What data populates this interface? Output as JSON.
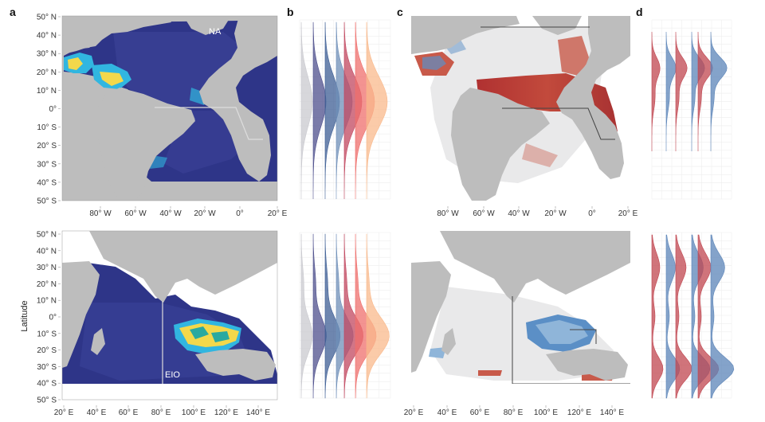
{
  "figure": {
    "panel_labels": [
      "a",
      "b",
      "c",
      "d"
    ],
    "y_axis_title": "Latitude",
    "colors": {
      "land": "#bdbdbd",
      "ocean_dark": "#2e3588",
      "hotspot_cyan": "#31b6e0",
      "hotspot_yellow": "#f3d84b",
      "risk_red": "#b53a3a",
      "risk_blue": "#5b8fc6",
      "mask_light": "#e9e9ea",
      "box_line": "#444444",
      "region_line": "#dddddd"
    }
  },
  "atlantic": {
    "region_label": "NA",
    "lat_ticks": [
      "50° N",
      "40° N",
      "30° N",
      "20° N",
      "10° N",
      "0°",
      "10° S",
      "20° S",
      "30° S",
      "40° S",
      "50° S"
    ],
    "lon_ticks": [
      "80° W",
      "60° W",
      "40° W",
      "20° W",
      "0°",
      "20° E"
    ]
  },
  "indian": {
    "region_label": "EIO",
    "lat_ticks": [
      "50° N",
      "40° N",
      "30° N",
      "20° N",
      "10° N",
      "0°",
      "10° S",
      "20° S",
      "30° S",
      "40° S",
      "50° S"
    ],
    "lon_ticks": [
      "20° E",
      "40° E",
      "60° E",
      "80° E",
      "100° E",
      "120° E",
      "140° E"
    ]
  },
  "ridgelines": {
    "b_colors": [
      "#c9c9cf",
      "#4d4f8c",
      "#3d5e94",
      "#6f8fb8",
      "#c2475f",
      "#ef6f6c",
      "#f9b98c"
    ],
    "d_colors": [
      "#c0454f",
      "#5b84b8",
      "#c0454f",
      "#5b84b8",
      "#c0454f",
      "#5b84b8"
    ]
  }
}
